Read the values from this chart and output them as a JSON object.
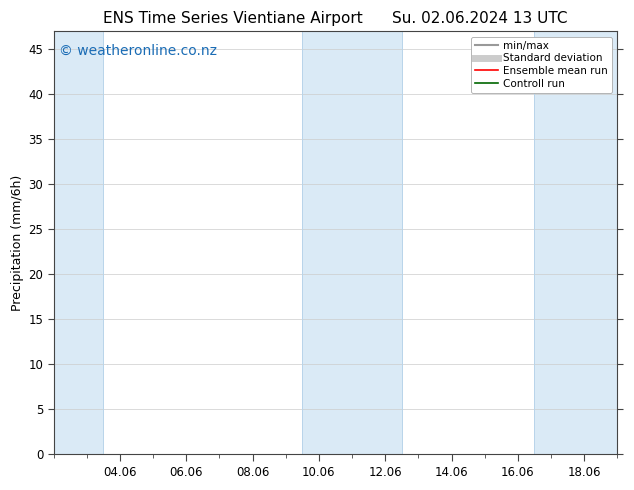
{
  "title_left": "ENS Time Series Vientiane Airport",
  "title_right": "Su. 02.06.2024 13 UTC",
  "ylabel": "Precipitation (mm/6h)",
  "xlabel": "",
  "ylim": [
    0,
    47
  ],
  "yticks": [
    0,
    5,
    10,
    15,
    20,
    25,
    30,
    35,
    40,
    45
  ],
  "xtick_labels": [
    "04.06",
    "06.06",
    "08.06",
    "10.06",
    "12.06",
    "14.06",
    "16.06",
    "18.06"
  ],
  "xtick_positions": [
    2.0,
    4.0,
    6.0,
    8.0,
    10.0,
    12.0,
    14.0,
    16.0
  ],
  "x_min": 0.0,
  "x_max": 17.0,
  "shaded_regions": [
    {
      "x_start": 0.0,
      "x_end": 1.5,
      "color": "#daeaf6"
    },
    {
      "x_start": 7.5,
      "x_end": 10.5,
      "color": "#daeaf6"
    },
    {
      "x_start": 14.5,
      "x_end": 17.0,
      "color": "#daeaf6"
    }
  ],
  "legend_items": [
    {
      "label": "min/max",
      "color": "#999999",
      "linewidth": 1.5,
      "linestyle": "-"
    },
    {
      "label": "Standard deviation",
      "color": "#cccccc",
      "linewidth": 5,
      "linestyle": "-"
    },
    {
      "label": "Ensemble mean run",
      "color": "#ff0000",
      "linewidth": 1.2,
      "linestyle": "-"
    },
    {
      "label": "Controll run",
      "color": "#006600",
      "linewidth": 1.2,
      "linestyle": "-"
    }
  ],
  "watermark": "© weatheronline.co.nz",
  "watermark_color": "#1a6cb5",
  "watermark_fontsize": 10,
  "title_fontsize": 11,
  "axis_fontsize": 9,
  "tick_fontsize": 8.5,
  "background_color": "#ffffff",
  "plot_bg_color": "#ffffff",
  "grid_color": "#cccccc",
  "spine_color": "#444444"
}
